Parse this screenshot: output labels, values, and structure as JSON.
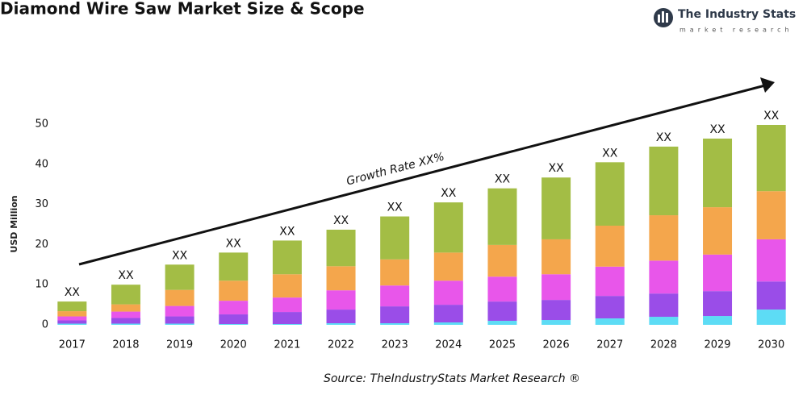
{
  "chart_data": {
    "type": "stacked_bar",
    "title": "Diamond Wire Saw Market Size & Scope",
    "brand": "The Industry Stats",
    "brand_tagline": "market research",
    "y_label": "USD Million",
    "annotation": "Growth Rate XX%",
    "source": "Source: TheIndustryStats Market Research ®",
    "categories": [
      "2017",
      "2018",
      "2019",
      "2020",
      "2021",
      "2022",
      "2023",
      "2024",
      "2025",
      "2026",
      "2027",
      "2028",
      "2029",
      "2030"
    ],
    "series": [
      {
        "color": "#5ddcf5",
        "values": [
          0.3,
          0.3,
          0.3,
          0.2,
          0.2,
          0.4,
          0.4,
          0.6,
          1,
          1.2,
          1.6,
          2,
          2.2,
          3.8
        ]
      },
      {
        "color": "#9a4de8",
        "values": [
          0.8,
          1.4,
          1.8,
          2.4,
          3,
          3.4,
          4.2,
          4.4,
          4.8,
          5,
          5.6,
          5.8,
          6.2,
          7
        ]
      },
      {
        "color": "#e856ea",
        "values": [
          1,
          1.6,
          2.6,
          3.4,
          3.6,
          4.8,
          5.2,
          6,
          6.2,
          6.4,
          7.3,
          8.2,
          9.1,
          10.5
        ]
      },
      {
        "color": "#f4a64c",
        "values": [
          1.3,
          1.8,
          4,
          5,
          5.8,
          6,
          6.5,
          7,
          7.9,
          8.7,
          10.2,
          11.3,
          11.8,
          12
        ]
      },
      {
        "color": "#a3bd45",
        "values": [
          2.4,
          4.9,
          6.3,
          7,
          8.4,
          9.1,
          10.7,
          12.5,
          14.1,
          15.4,
          15.8,
          17.1,
          17.1,
          16.5
        ]
      }
    ],
    "total_labels": [
      "XX",
      "XX",
      "XX",
      "XX",
      "XX",
      "XX",
      "XX",
      "XX",
      "XX",
      "XX",
      "XX",
      "XX",
      "XX",
      "XX"
    ],
    "ylim": [
      -2,
      53
    ],
    "yticks": [
      0,
      10,
      20,
      30,
      40,
      50
    ],
    "grid": false
  }
}
